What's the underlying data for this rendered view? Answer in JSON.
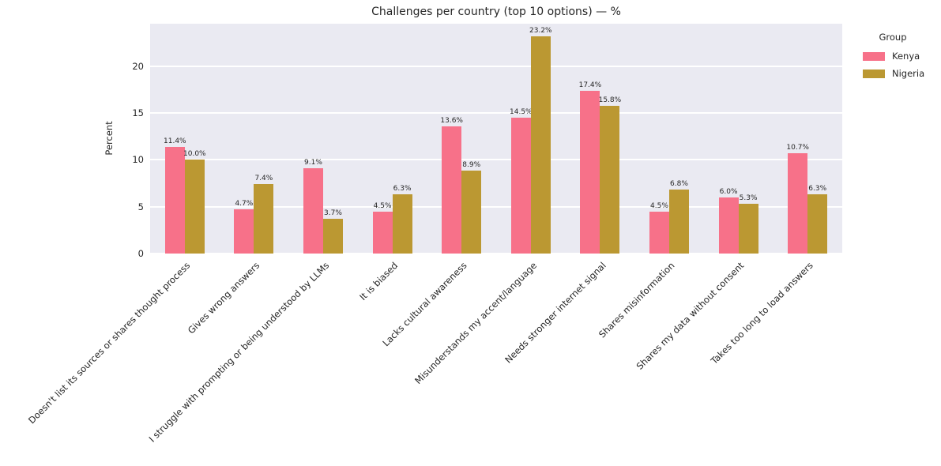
{
  "title": "Challenges per country (top 10 options) — %",
  "ylabel": "Percent",
  "legend": {
    "title": "Group",
    "entries": [
      {
        "label": "Kenya",
        "color": "#f77189"
      },
      {
        "label": "Nigeria",
        "color": "#bb9832"
      }
    ]
  },
  "colors": {
    "plot_background": "#eaeaf2",
    "grid": "#ffffff",
    "text": "#262626",
    "kenya": "#f77189",
    "nigeria": "#bb9832"
  },
  "chart_data": {
    "type": "bar",
    "title": "Challenges per country (top 10 options) — %",
    "xlabel": "",
    "ylabel": "Percent",
    "legend_title": "Group",
    "legend_position": "upper right, outside plot",
    "grid": true,
    "categories": [
      "Doesn't list its sources or shares thought process",
      "Gives wrong answers",
      "I struggle with prompting or being understood by LLMs",
      "It is biased",
      "Lacks cultural awareness",
      "Misunderstands my accent/language",
      "Needs stronger internet signal",
      "Shares misinformation",
      "Shares my data without consent",
      "Takes too long to load answers"
    ],
    "series": [
      {
        "name": "Kenya",
        "color": "#f77189",
        "values": [
          11.4,
          4.7,
          9.1,
          4.5,
          13.6,
          14.5,
          17.4,
          4.5,
          6.0,
          10.7
        ]
      },
      {
        "name": "Nigeria",
        "color": "#bb9832",
        "values": [
          10.0,
          7.4,
          3.7,
          6.3,
          8.9,
          23.2,
          15.8,
          6.8,
          5.3,
          6.3
        ]
      }
    ],
    "value_label_suffix": "%",
    "yticks": [
      0,
      5,
      10,
      15,
      20
    ],
    "ylim": [
      0,
      24.55
    ]
  }
}
